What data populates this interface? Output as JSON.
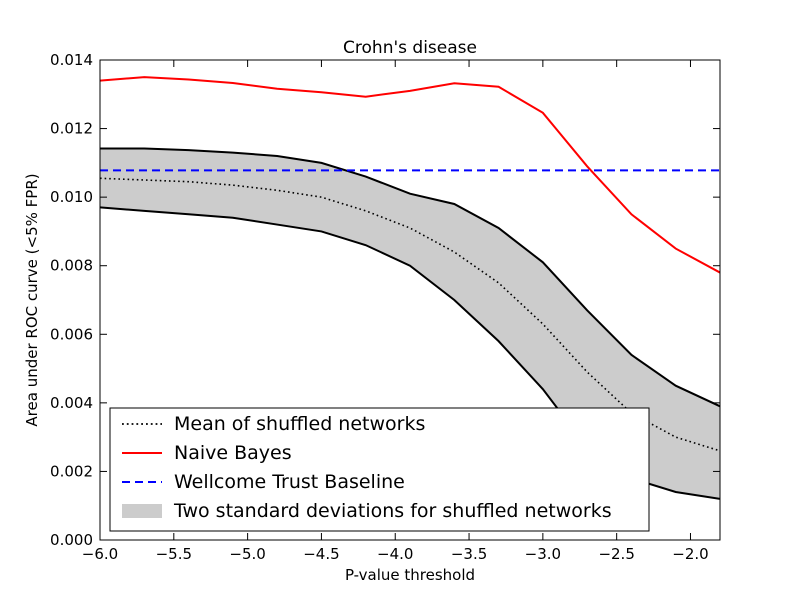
{
  "chart_data": {
    "type": "line",
    "title": "Crohn's disease",
    "xlabel": "P-value threshold",
    "ylabel": "Area under ROC curve (<5% FPR)",
    "xlim": [
      -6.0,
      -1.8
    ],
    "ylim": [
      0.0,
      0.014
    ],
    "x_ticks": [
      -6.0,
      -5.5,
      -5.0,
      -4.5,
      -4.0,
      -3.5,
      -3.0,
      -2.5,
      -2.0
    ],
    "x_tick_labels": [
      "−6.0",
      "−5.5",
      "−5.0",
      "−4.5",
      "−4.0",
      "−3.5",
      "−3.0",
      "−2.5",
      "−2.0"
    ],
    "y_ticks": [
      0.0,
      0.002,
      0.004,
      0.006,
      0.008,
      0.01,
      0.012,
      0.014
    ],
    "y_tick_labels": [
      "0.000",
      "0.002",
      "0.004",
      "0.006",
      "0.008",
      "0.010",
      "0.012",
      "0.014"
    ],
    "grid": false,
    "legend_position": "lower-left",
    "x": [
      -6.0,
      -5.7,
      -5.4,
      -5.1,
      -4.8,
      -4.5,
      -4.2,
      -3.9,
      -3.6,
      -3.3,
      -3.0,
      -2.7,
      -2.4,
      -2.1,
      -1.8
    ],
    "series": [
      {
        "name": "Mean of shuffled networks",
        "style": "dotted",
        "color": "#000000",
        "values": [
          0.01055,
          0.0105,
          0.01045,
          0.01035,
          0.0102,
          0.01,
          0.0096,
          0.0091,
          0.0084,
          0.0075,
          0.0063,
          0.0049,
          0.0037,
          0.003,
          0.0026
        ]
      },
      {
        "name": "Naive Bayes",
        "style": "solid",
        "color": "#ff0000",
        "values": [
          0.0134,
          0.0135,
          0.01343,
          0.01333,
          0.01316,
          0.01306,
          0.01293,
          0.0131,
          0.01332,
          0.01322,
          0.01246,
          0.0109,
          0.0095,
          0.0085,
          0.0078
        ]
      },
      {
        "name": "Wellcome Trust Baseline",
        "style": "dashed",
        "color": "#0000ff",
        "values": [
          0.01078,
          0.01078,
          0.01078,
          0.01078,
          0.01078,
          0.01078,
          0.01078,
          0.01078,
          0.01078,
          0.01078,
          0.01078,
          0.01078,
          0.01078,
          0.01078,
          0.01078
        ]
      }
    ],
    "band": {
      "name": "Two standard deviations for shuffled networks",
      "color": "#cccccc",
      "upper": [
        0.01142,
        0.01142,
        0.01137,
        0.0113,
        0.0112,
        0.011,
        0.0106,
        0.0101,
        0.0098,
        0.0091,
        0.0081,
        0.0067,
        0.0054,
        0.0045,
        0.0039
      ],
      "lower": [
        0.0097,
        0.0096,
        0.0095,
        0.0094,
        0.0092,
        0.009,
        0.0086,
        0.008,
        0.007,
        0.0058,
        0.0044,
        0.0027,
        0.0018,
        0.0014,
        0.0012
      ]
    }
  }
}
